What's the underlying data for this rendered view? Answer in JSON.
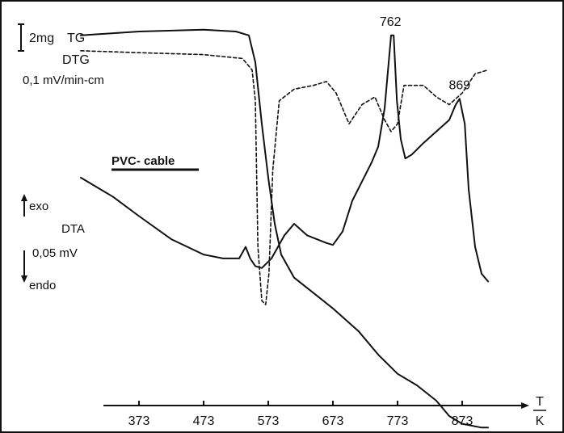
{
  "chart_data": {
    "type": "line",
    "title": "",
    "xlabel": "T / K",
    "ylabel": "",
    "x_ticks": [
      "373",
      "473",
      "573",
      "673",
      "773",
      "873"
    ],
    "xlim": [
      283,
      973
    ],
    "sample_label": "PVC- cable",
    "scale_labels": {
      "tg": "2mg",
      "dtg": "0,1 mV/min-cm",
      "dta": "0,05 mV",
      "exo": "exo",
      "endo": "endo",
      "x_unit_top": "T",
      "x_unit_bottom": "K"
    },
    "annotations": [
      {
        "text": "762",
        "x": 762
      },
      {
        "text": "869",
        "x": 869
      }
    ],
    "series": [
      {
        "name": "TG",
        "line_style": "solid",
        "points": [
          [
            283,
            0.95
          ],
          [
            373,
            0.96
          ],
          [
            473,
            0.965
          ],
          [
            523,
            0.96
          ],
          [
            543,
            0.95
          ],
          [
            553,
            0.88
          ],
          [
            563,
            0.72
          ],
          [
            573,
            0.58
          ],
          [
            583,
            0.46
          ],
          [
            593,
            0.38
          ],
          [
            613,
            0.32
          ],
          [
            643,
            0.28
          ],
          [
            673,
            0.24
          ],
          [
            713,
            0.18
          ],
          [
            743,
            0.12
          ],
          [
            773,
            0.07
          ],
          [
            803,
            0.04
          ],
          [
            833,
            0.0
          ],
          [
            853,
            -0.04
          ],
          [
            873,
            -0.06
          ],
          [
            903,
            -0.07
          ],
          [
            913,
            -0.07
          ]
        ]
      },
      {
        "name": "DTG",
        "line_style": "dashed",
        "points": [
          [
            283,
            0.91
          ],
          [
            373,
            0.905
          ],
          [
            473,
            0.9
          ],
          [
            533,
            0.89
          ],
          [
            548,
            0.86
          ],
          [
            553,
            0.78
          ],
          [
            557,
            0.4
          ],
          [
            563,
            0.26
          ],
          [
            569,
            0.25
          ],
          [
            574,
            0.33
          ],
          [
            580,
            0.6
          ],
          [
            590,
            0.78
          ],
          [
            613,
            0.81
          ],
          [
            643,
            0.82
          ],
          [
            663,
            0.83
          ],
          [
            678,
            0.8
          ],
          [
            698,
            0.72
          ],
          [
            718,
            0.77
          ],
          [
            738,
            0.79
          ],
          [
            753,
            0.73
          ],
          [
            763,
            0.7
          ],
          [
            773,
            0.72
          ],
          [
            783,
            0.82
          ],
          [
            813,
            0.82
          ],
          [
            833,
            0.79
          ],
          [
            853,
            0.77
          ],
          [
            873,
            0.8
          ],
          [
            893,
            0.85
          ],
          [
            913,
            0.86
          ]
        ]
      },
      {
        "name": "DTA",
        "line_style": "solid",
        "points": [
          [
            283,
            0.58
          ],
          [
            333,
            0.53
          ],
          [
            373,
            0.48
          ],
          [
            423,
            0.42
          ],
          [
            473,
            0.38
          ],
          [
            503,
            0.37
          ],
          [
            528,
            0.37
          ],
          [
            538,
            0.4
          ],
          [
            545,
            0.37
          ],
          [
            553,
            0.35
          ],
          [
            563,
            0.345
          ],
          [
            578,
            0.37
          ],
          [
            598,
            0.43
          ],
          [
            613,
            0.46
          ],
          [
            633,
            0.43
          ],
          [
            648,
            0.42
          ],
          [
            663,
            0.41
          ],
          [
            673,
            0.405
          ],
          [
            688,
            0.44
          ],
          [
            703,
            0.52
          ],
          [
            718,
            0.57
          ],
          [
            733,
            0.62
          ],
          [
            743,
            0.66
          ],
          [
            753,
            0.76
          ],
          [
            763,
            0.95
          ],
          [
            767,
            0.95
          ],
          [
            772,
            0.78
          ],
          [
            778,
            0.68
          ],
          [
            785,
            0.63
          ],
          [
            795,
            0.64
          ],
          [
            813,
            0.67
          ],
          [
            833,
            0.7
          ],
          [
            853,
            0.73
          ],
          [
            863,
            0.77
          ],
          [
            869,
            0.785
          ],
          [
            877,
            0.72
          ],
          [
            883,
            0.55
          ],
          [
            893,
            0.4
          ],
          [
            903,
            0.33
          ],
          [
            913,
            0.31
          ]
        ]
      }
    ],
    "grid": false,
    "legend": "none"
  }
}
